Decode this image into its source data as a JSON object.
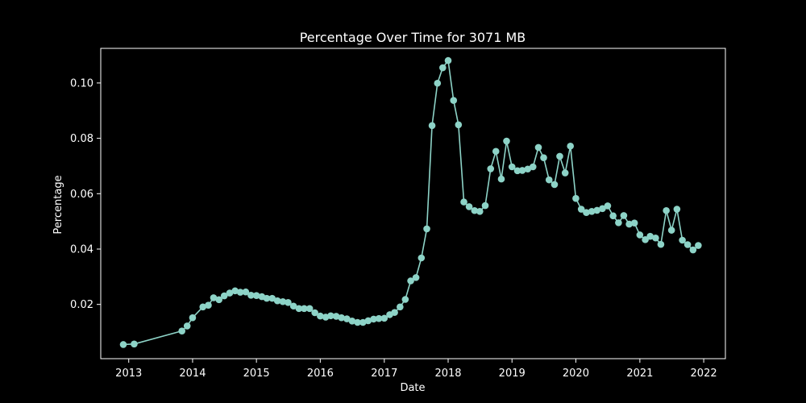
{
  "chart_data": {
    "type": "line",
    "title": "Percentage Over Time for 3071 MB",
    "xlabel": "Date",
    "ylabel": "Percentage",
    "grid": false,
    "x_ticks": [
      "2013",
      "2014",
      "2015",
      "2016",
      "2017",
      "2018",
      "2019",
      "2020",
      "2021",
      "2022"
    ],
    "y_ticks": [
      "0.02",
      "0.04",
      "0.06",
      "0.08",
      "0.10"
    ],
    "xlim": [
      "2012-07-25",
      "2022-05-05"
    ],
    "ylim": [
      0.0004,
      0.1125
    ],
    "colors": {
      "background": "#000000",
      "foreground": "#ffffff",
      "series": "#8dd3c7"
    },
    "series": [
      {
        "x": [
          "2012-12-01",
          "2013-02-01",
          "2013-11-01",
          "2013-12-01",
          "2014-01-01",
          "2014-03-01",
          "2014-04-01",
          "2014-05-01",
          "2014-06-01",
          "2014-07-01",
          "2014-08-01",
          "2014-09-01",
          "2014-10-01",
          "2014-11-01",
          "2014-12-01",
          "2015-01-01",
          "2015-02-01",
          "2015-03-01",
          "2015-04-01",
          "2015-05-01",
          "2015-06-01",
          "2015-07-01",
          "2015-08-01",
          "2015-09-01",
          "2015-10-01",
          "2015-11-01",
          "2015-12-01",
          "2016-01-01",
          "2016-02-01",
          "2016-03-01",
          "2016-04-01",
          "2016-05-01",
          "2016-06-01",
          "2016-07-01",
          "2016-08-01",
          "2016-09-01",
          "2016-10-01",
          "2016-11-01",
          "2016-12-01",
          "2017-01-01",
          "2017-02-01",
          "2017-03-01",
          "2017-04-01",
          "2017-05-01",
          "2017-06-01",
          "2017-07-01",
          "2017-08-01",
          "2017-09-01",
          "2017-10-01",
          "2017-11-01",
          "2017-12-01",
          "2018-01-01",
          "2018-02-01",
          "2018-03-01",
          "2018-04-01",
          "2018-05-01",
          "2018-06-01",
          "2018-07-01",
          "2018-08-01",
          "2018-09-01",
          "2018-10-01",
          "2018-11-01",
          "2018-12-01",
          "2019-01-01",
          "2019-02-01",
          "2019-03-01",
          "2019-04-01",
          "2019-05-01",
          "2019-06-01",
          "2019-07-01",
          "2019-08-01",
          "2019-09-01",
          "2019-10-01",
          "2019-11-01",
          "2019-12-01",
          "2020-01-01",
          "2020-02-01",
          "2020-03-01",
          "2020-04-01",
          "2020-05-01",
          "2020-06-01",
          "2020-07-01",
          "2020-08-01",
          "2020-09-01",
          "2020-10-01",
          "2020-11-01",
          "2020-12-01",
          "2021-01-01",
          "2021-02-01",
          "2021-03-01",
          "2021-04-01",
          "2021-05-01",
          "2021-06-01",
          "2021-07-01",
          "2021-08-01",
          "2021-09-01",
          "2021-10-01",
          "2021-11-01",
          "2021-12-01"
        ],
        "y": [
          0.0055,
          0.0057,
          0.0104,
          0.0122,
          0.0152,
          0.0191,
          0.0197,
          0.0224,
          0.0217,
          0.0231,
          0.0241,
          0.0249,
          0.0244,
          0.0245,
          0.0233,
          0.0232,
          0.0228,
          0.0222,
          0.0222,
          0.0213,
          0.021,
          0.0207,
          0.0194,
          0.0185,
          0.0185,
          0.0185,
          0.017,
          0.0158,
          0.0154,
          0.0159,
          0.0157,
          0.0152,
          0.0148,
          0.014,
          0.0135,
          0.0135,
          0.0141,
          0.0147,
          0.0149,
          0.015,
          0.0163,
          0.0171,
          0.0191,
          0.0218,
          0.0285,
          0.0297,
          0.0368,
          0.0473,
          0.0846,
          0.0999,
          0.1055,
          0.1081,
          0.0937,
          0.0849,
          0.057,
          0.0553,
          0.0539,
          0.0536,
          0.0557,
          0.069,
          0.0753,
          0.0653,
          0.079,
          0.0697,
          0.0683,
          0.0684,
          0.0689,
          0.0697,
          0.0767,
          0.073,
          0.065,
          0.0633,
          0.0735,
          0.0675,
          0.0772,
          0.0583,
          0.0544,
          0.0532,
          0.0536,
          0.054,
          0.0546,
          0.0556,
          0.052,
          0.0495,
          0.0521,
          0.049,
          0.0494,
          0.0451,
          0.0434,
          0.0446,
          0.044,
          0.0417,
          0.0539,
          0.0468,
          0.0544,
          0.0432,
          0.0416,
          0.0397,
          0.0413
        ]
      }
    ]
  }
}
